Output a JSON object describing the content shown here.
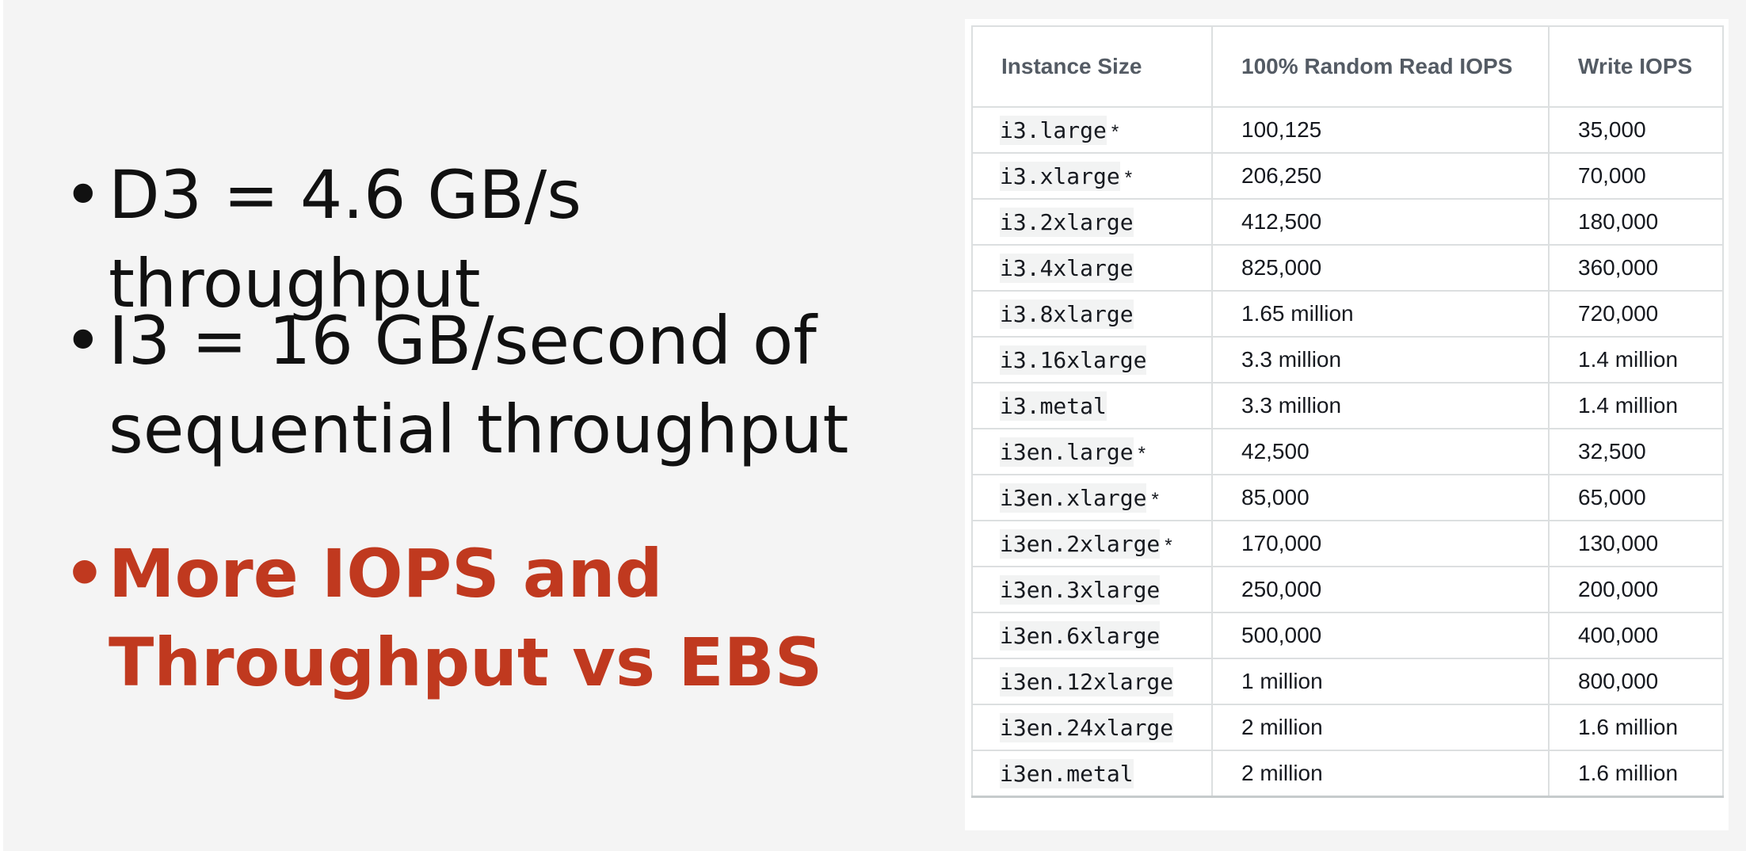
{
  "slide": {
    "bullet_symbol": "•",
    "bullets": [
      {
        "lines": [
          "D3 = 4.6 GB/s throughput"
        ]
      },
      {
        "lines": [
          "I3 = 16 GB/second of",
          "sequential throughput"
        ]
      },
      {
        "lines": [
          "More IOPS and",
          "Throughput vs EBS"
        ]
      }
    ],
    "highlight_color": "#c0391f"
  },
  "table": {
    "headers": [
      "Instance Size",
      "100% Random Read IOPS",
      "Write IOPS"
    ],
    "rows": [
      {
        "instance": "i3.large",
        "marker": "*",
        "read_iops": "100,125",
        "write_iops": "35,000"
      },
      {
        "instance": "i3.xlarge",
        "marker": "*",
        "read_iops": "206,250",
        "write_iops": "70,000"
      },
      {
        "instance": "i3.2xlarge",
        "marker": "",
        "read_iops": "412,500",
        "write_iops": "180,000"
      },
      {
        "instance": "i3.4xlarge",
        "marker": "",
        "read_iops": "825,000",
        "write_iops": "360,000"
      },
      {
        "instance": "i3.8xlarge",
        "marker": "",
        "read_iops": "1.65 million",
        "write_iops": "720,000"
      },
      {
        "instance": "i3.16xlarge",
        "marker": "",
        "read_iops": "3.3 million",
        "write_iops": "1.4 million"
      },
      {
        "instance": "i3.metal",
        "marker": "",
        "read_iops": "3.3 million",
        "write_iops": "1.4 million"
      },
      {
        "instance": "i3en.large",
        "marker": "*",
        "read_iops": "42,500",
        "write_iops": "32,500"
      },
      {
        "instance": "i3en.xlarge",
        "marker": "*",
        "read_iops": "85,000",
        "write_iops": "65,000"
      },
      {
        "instance": "i3en.2xlarge",
        "marker": "*",
        "read_iops": "170,000",
        "write_iops": "130,000"
      },
      {
        "instance": "i3en.3xlarge",
        "marker": "",
        "read_iops": "250,000",
        "write_iops": "200,000"
      },
      {
        "instance": "i3en.6xlarge",
        "marker": "",
        "read_iops": "500,000",
        "write_iops": "400,000"
      },
      {
        "instance": "i3en.12xlarge",
        "marker": "",
        "read_iops": "1 million",
        "write_iops": "800,000"
      },
      {
        "instance": "i3en.24xlarge",
        "marker": "",
        "read_iops": "2 million",
        "write_iops": "1.6 million"
      },
      {
        "instance": "i3en.metal",
        "marker": "",
        "read_iops": "2 million",
        "write_iops": "1.6 million"
      }
    ]
  }
}
